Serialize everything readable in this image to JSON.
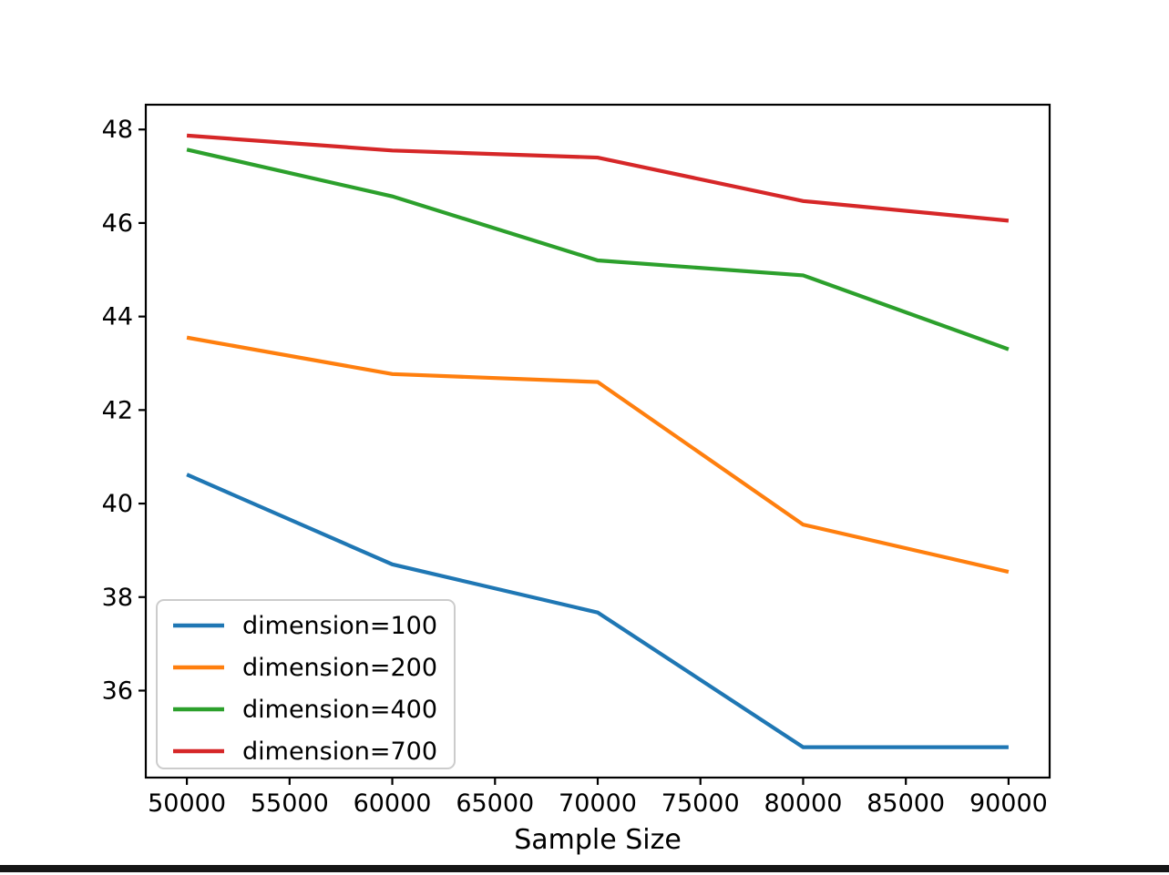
{
  "figure": {
    "background": "#ffffff",
    "bottom_bar_color": "#161616"
  },
  "chart_data": {
    "type": "line",
    "title": "",
    "xlabel": "Sample Size",
    "ylabel": "",
    "x": [
      50000,
      60000,
      70000,
      80000,
      90000
    ],
    "series": [
      {
        "name": "dimension=100",
        "color": "#1f77b4",
        "values": [
          40.62,
          38.7,
          37.67,
          34.79,
          34.79
        ]
      },
      {
        "name": "dimension=200",
        "color": "#ff7f0e",
        "values": [
          43.55,
          42.77,
          42.6,
          39.55,
          38.54
        ]
      },
      {
        "name": "dimension=400",
        "color": "#2ca02c",
        "values": [
          47.57,
          46.57,
          45.2,
          44.88,
          43.3
        ]
      },
      {
        "name": "dimension=700",
        "color": "#d62728",
        "values": [
          47.87,
          47.55,
          47.4,
          46.47,
          46.05
        ]
      }
    ],
    "xlim": [
      48000,
      92000
    ],
    "ylim": [
      34.14,
      48.53
    ],
    "xticks": [
      50000,
      55000,
      60000,
      65000,
      70000,
      75000,
      80000,
      85000,
      90000
    ],
    "yticks": [
      36,
      38,
      40,
      42,
      44,
      46,
      48
    ],
    "grid": false,
    "legend": {
      "position": "lower left",
      "entries": [
        "dimension=100",
        "dimension=200",
        "dimension=400",
        "dimension=700"
      ]
    },
    "axis_color": "#000000",
    "tick_label_color": "#000000",
    "line_width": 4.2
  }
}
